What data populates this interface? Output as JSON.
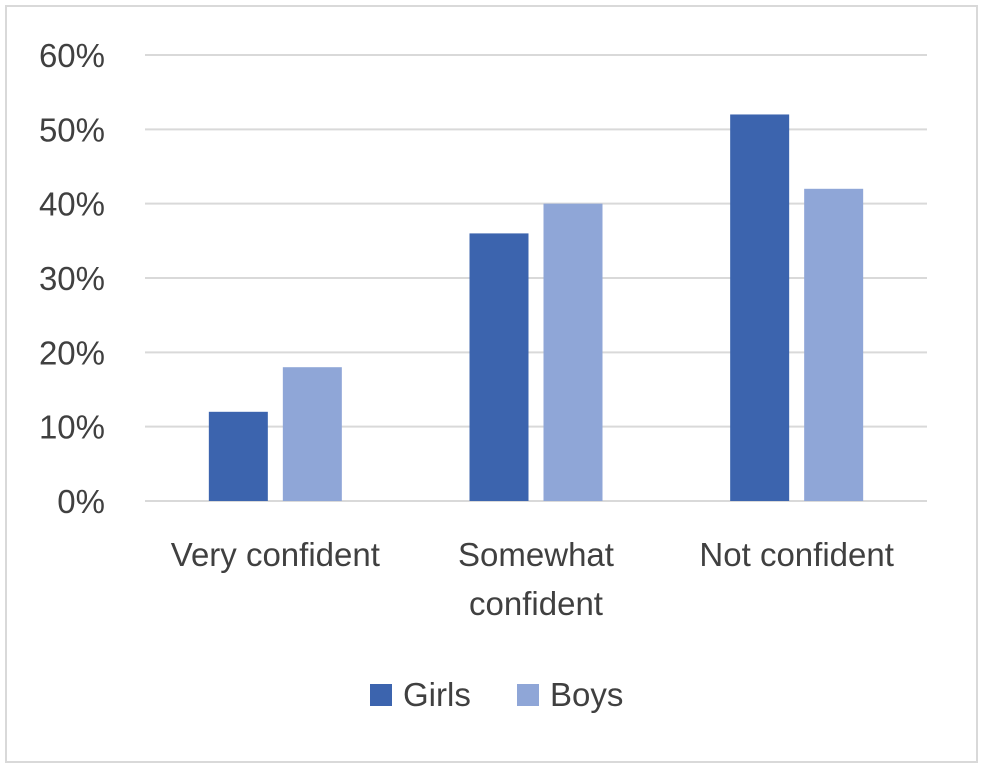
{
  "chart_data": {
    "type": "bar",
    "categories": [
      [
        "Very confident"
      ],
      [
        "Somewhat",
        "confident"
      ],
      [
        "Not confident"
      ]
    ],
    "series": [
      {
        "name": "Girls",
        "values": [
          12,
          36,
          52
        ],
        "color": "#3c64ae"
      },
      {
        "name": "Boys",
        "values": [
          18,
          40,
          42
        ],
        "color": "#8fa6d7"
      }
    ],
    "ylim": [
      0,
      60
    ],
    "yticks": [
      0,
      10,
      20,
      30,
      40,
      50,
      60
    ],
    "ytick_suffix": "%",
    "title": "",
    "xlabel": "",
    "ylabel": "",
    "grid": true,
    "legend": "bottom-center"
  }
}
